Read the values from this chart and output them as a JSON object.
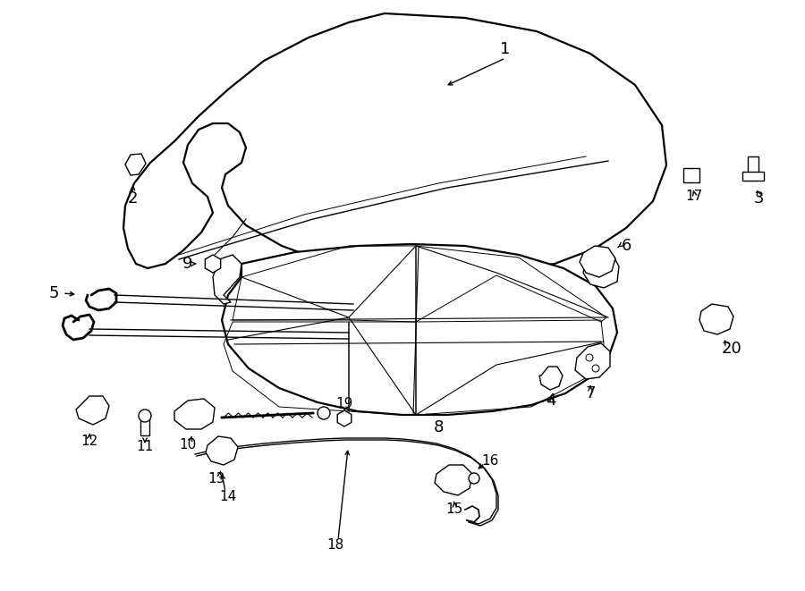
{
  "bg_color": "#ffffff",
  "figsize": [
    9.0,
    6.61
  ],
  "dpi": 100,
  "lw_main": 1.6,
  "lw_thin": 1.0,
  "lw_thick": 2.0,
  "fontsize_large": 13,
  "fontsize_small": 11
}
